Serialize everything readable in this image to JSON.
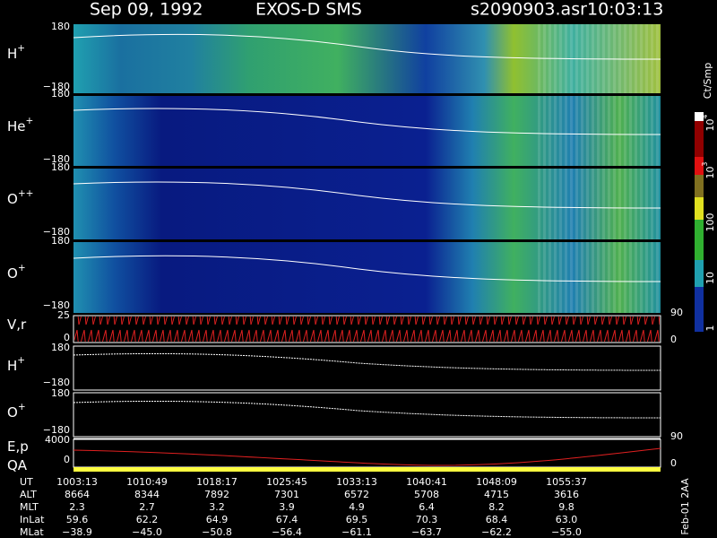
{
  "header": {
    "date": "Sep 09, 1992",
    "instrument": "EXOS-D SMS",
    "file": "s2090903.asr",
    "time": "10:03:13"
  },
  "panels": [
    {
      "label": {
        "base": "H",
        "sup": "+"
      },
      "ticks": [
        "180",
        "−180"
      ]
    },
    {
      "label": {
        "base": "He",
        "sup": "+"
      },
      "ticks": [
        "180",
        "−180"
      ]
    },
    {
      "label": {
        "base": "O",
        "sup": "++"
      },
      "ticks": [
        "180",
        "−180"
      ]
    },
    {
      "label": {
        "base": "O",
        "sup": "+"
      },
      "ticks": [
        "180",
        "−180"
      ]
    },
    {
      "label": {
        "base": "V,r"
      },
      "ticks": [
        "25",
        "0"
      ],
      "right_ticks": [
        "90",
        "0"
      ]
    },
    {
      "label": {
        "base": "H",
        "sup": "+"
      },
      "ticks": [
        "180",
        "−180"
      ]
    },
    {
      "label": {
        "base": "O",
        "sup": "+"
      },
      "ticks": [
        "180",
        "−180"
      ]
    },
    {
      "label": {
        "base": "E,p"
      },
      "ticks": [
        "4000",
        "0"
      ],
      "right_ticks": [
        "90",
        "0"
      ]
    },
    {
      "label": {
        "base": "QA"
      }
    }
  ],
  "colorbar": {
    "unit": "Ct/Smp",
    "labels": [
      {
        "base": "10",
        "sup": "4"
      },
      {
        "base": "10",
        "sup": "3"
      },
      {
        "base": "100"
      },
      {
        "base": "10"
      },
      {
        "base": "1"
      }
    ]
  },
  "table": {
    "rows": [
      {
        "label": "UT",
        "values": [
          "1003:13",
          "1010:49",
          "1018:17",
          "1025:45",
          "1033:13",
          "1040:41",
          "1048:09",
          "1055:37"
        ]
      },
      {
        "label": "ALT",
        "values": [
          "8664",
          "8344",
          "7892",
          "7301",
          "6572",
          "5708",
          "4715",
          "3616"
        ]
      },
      {
        "label": "MLT",
        "values": [
          "2.3",
          "2.7",
          "3.2",
          "3.9",
          "4.9",
          "6.4",
          "8.2",
          "9.8"
        ]
      },
      {
        "label": "InLat",
        "values": [
          "59.6",
          "62.2",
          "64.9",
          "67.4",
          "69.5",
          "70.3",
          "68.4",
          "63.0"
        ]
      },
      {
        "label": "MLat",
        "values": [
          "−38.9",
          "−45.0",
          "−50.8",
          "−56.4",
          "−61.1",
          "−63.7",
          "−62.2",
          "−55.0"
        ]
      }
    ]
  },
  "footer": "Feb-01 2AA"
}
